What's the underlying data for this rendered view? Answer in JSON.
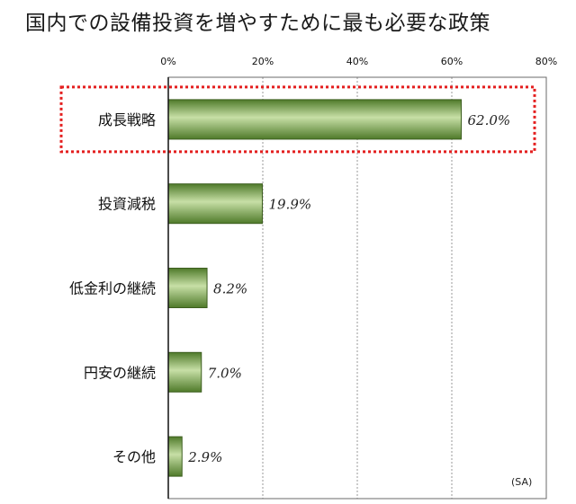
{
  "chart_data": {
    "type": "bar",
    "orientation": "horizontal",
    "title": "国内での設備投資を増やすために最も必要な政策",
    "categories": [
      "成長戦略",
      "投資減税",
      "低金利の継続",
      "円安の継続",
      "その他"
    ],
    "values": [
      62.0,
      19.9,
      8.2,
      7.0,
      2.9
    ],
    "value_labels": [
      "62.0%",
      "19.9%",
      "8.2%",
      "7.0%",
      "2.9%"
    ],
    "xlim": [
      0,
      80
    ],
    "xticks": [
      "0%",
      "20%",
      "40%",
      "60%",
      "80%"
    ],
    "xtick_values": [
      0,
      20,
      40,
      60,
      80
    ],
    "x_axis_position": "top",
    "grid": true,
    "note": "(SA)",
    "highlighted_category": "成長戦略",
    "colors": {
      "bar_dark": "#4f7a2a",
      "bar_light": "#c7dfa6",
      "bar_border": "#3d5f1f",
      "highlight_box": "#e41f1f",
      "grid": "#9a9a9a"
    }
  }
}
